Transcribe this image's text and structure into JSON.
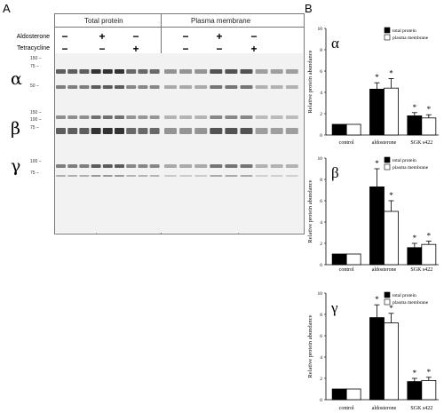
{
  "panel_a": {
    "letter": "A",
    "group_headers": [
      "Total protein",
      "Plasma membrane"
    ],
    "conditions": [
      {
        "label": "Aldosterone",
        "signs": [
          "−",
          "+",
          "−",
          "−",
          "+",
          "−"
        ]
      },
      {
        "label": "Tetracycline",
        "signs": [
          "−",
          "−",
          "+",
          "−",
          "−",
          "+"
        ]
      }
    ],
    "blots": [
      {
        "greek": "α",
        "markers": [
          "150 –",
          "75 –",
          "50 –"
        ]
      },
      {
        "greek": "β",
        "markers": [
          "150 –",
          "100 –",
          "75 –"
        ]
      },
      {
        "greek": "γ",
        "markers": [
          "100 –",
          "75 –"
        ]
      }
    ]
  },
  "panel_b_letter": "B",
  "colors": {
    "total": "#000000",
    "membrane": "#ffffff"
  },
  "chart_data": [
    {
      "type": "bar",
      "greek": "α",
      "categories": [
        "control",
        "aldosterone",
        "SGK s422"
      ],
      "series": [
        {
          "name": "total protein",
          "values": [
            1.0,
            4.3,
            1.8
          ]
        },
        {
          "name": "plasma membrane",
          "values": [
            1.0,
            4.4,
            1.6
          ]
        }
      ],
      "errors": [
        [
          0,
          0.6,
          0.3
        ],
        [
          0,
          0.9,
          0.3
        ]
      ],
      "stars": [
        [
          false,
          true,
          true
        ],
        [
          false,
          true,
          true
        ]
      ],
      "ylabel": "Relative protein abundance",
      "ylim": [
        0,
        10
      ],
      "yticks": [
        "0",
        "2",
        "4",
        "6",
        "8",
        "10"
      ],
      "legend": "top-right"
    },
    {
      "type": "bar",
      "greek": "β",
      "categories": [
        "control",
        "aldosterone",
        "SGK s422"
      ],
      "series": [
        {
          "name": "total protein",
          "values": [
            1.0,
            7.3,
            1.6
          ]
        },
        {
          "name": "plasma membrane",
          "values": [
            1.0,
            5.0,
            1.9
          ]
        }
      ],
      "errors": [
        [
          0,
          1.7,
          0.4
        ],
        [
          0,
          1.0,
          0.3
        ]
      ],
      "stars": [
        [
          false,
          true,
          true
        ],
        [
          false,
          true,
          true
        ]
      ],
      "ylabel": "Relative protein abundance",
      "ylim": [
        0,
        10
      ],
      "yticks": [
        "0",
        "2",
        "4",
        "6",
        "8",
        "10"
      ],
      "legend": "top-right"
    },
    {
      "type": "bar",
      "greek": "γ",
      "categories": [
        "control",
        "aldosterone",
        "SGK s422"
      ],
      "series": [
        {
          "name": "total protein",
          "values": [
            1.0,
            7.7,
            1.7
          ]
        },
        {
          "name": "plasma membrane",
          "values": [
            1.0,
            7.2,
            1.8
          ]
        }
      ],
      "errors": [
        [
          0,
          1.2,
          0.3
        ],
        [
          0,
          0.9,
          0.3
        ]
      ],
      "stars": [
        [
          false,
          true,
          true
        ],
        [
          false,
          true,
          true
        ]
      ],
      "ylabel": "Relative protein abundance",
      "ylim": [
        0,
        10
      ],
      "yticks": [
        "0",
        "2",
        "4",
        "6",
        "8",
        "10"
      ],
      "legend": "top-right"
    }
  ]
}
